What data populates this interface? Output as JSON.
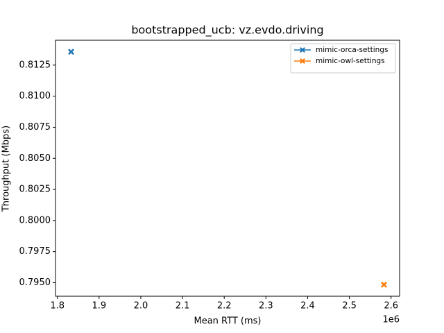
{
  "chart_data": {
    "type": "scatter",
    "title": "bootstrapped_ucb: vz.evdo.driving",
    "x_label": "Mean RTT (ms)",
    "y_label": "Throughput (Mbps)",
    "x_offset_label": "1e6",
    "series": [
      {
        "name": "mimic-orca-settings",
        "color": "#1f77b4",
        "x": [
          1833000
        ],
        "values": [
          0.81357
        ]
      },
      {
        "name": "mimic-owl-settings",
        "color": "#ff7f0e",
        "x": [
          2583000
        ],
        "values": [
          0.79484
        ]
      }
    ],
    "xlim": [
      1795500,
      2620500
    ],
    "xticks": [
      {
        "value": 1800000,
        "label": "1.8"
      },
      {
        "value": 1900000,
        "label": "1.9"
      },
      {
        "value": 2000000,
        "label": "2.0"
      },
      {
        "value": 2100000,
        "label": "2.1"
      },
      {
        "value": 2200000,
        "label": "2.2"
      },
      {
        "value": 2300000,
        "label": "2.3"
      },
      {
        "value": 2400000,
        "label": "2.4"
      },
      {
        "value": 2500000,
        "label": "2.5"
      },
      {
        "value": 2600000,
        "label": "2.6"
      }
    ],
    "ylim": [
      0.79391,
      0.8145
    ],
    "yticks": [
      {
        "value": 0.795,
        "label": "0.7950"
      },
      0.7975,
      {
        "value": 0.8,
        "label": "0.8000"
      },
      0.8025,
      {
        "value": 0.805,
        "label": "0.8050"
      },
      0.8075,
      {
        "value": 0.81,
        "label": "0.8100"
      },
      0.8125
    ],
    "legend": "upper right",
    "grid": false
  }
}
